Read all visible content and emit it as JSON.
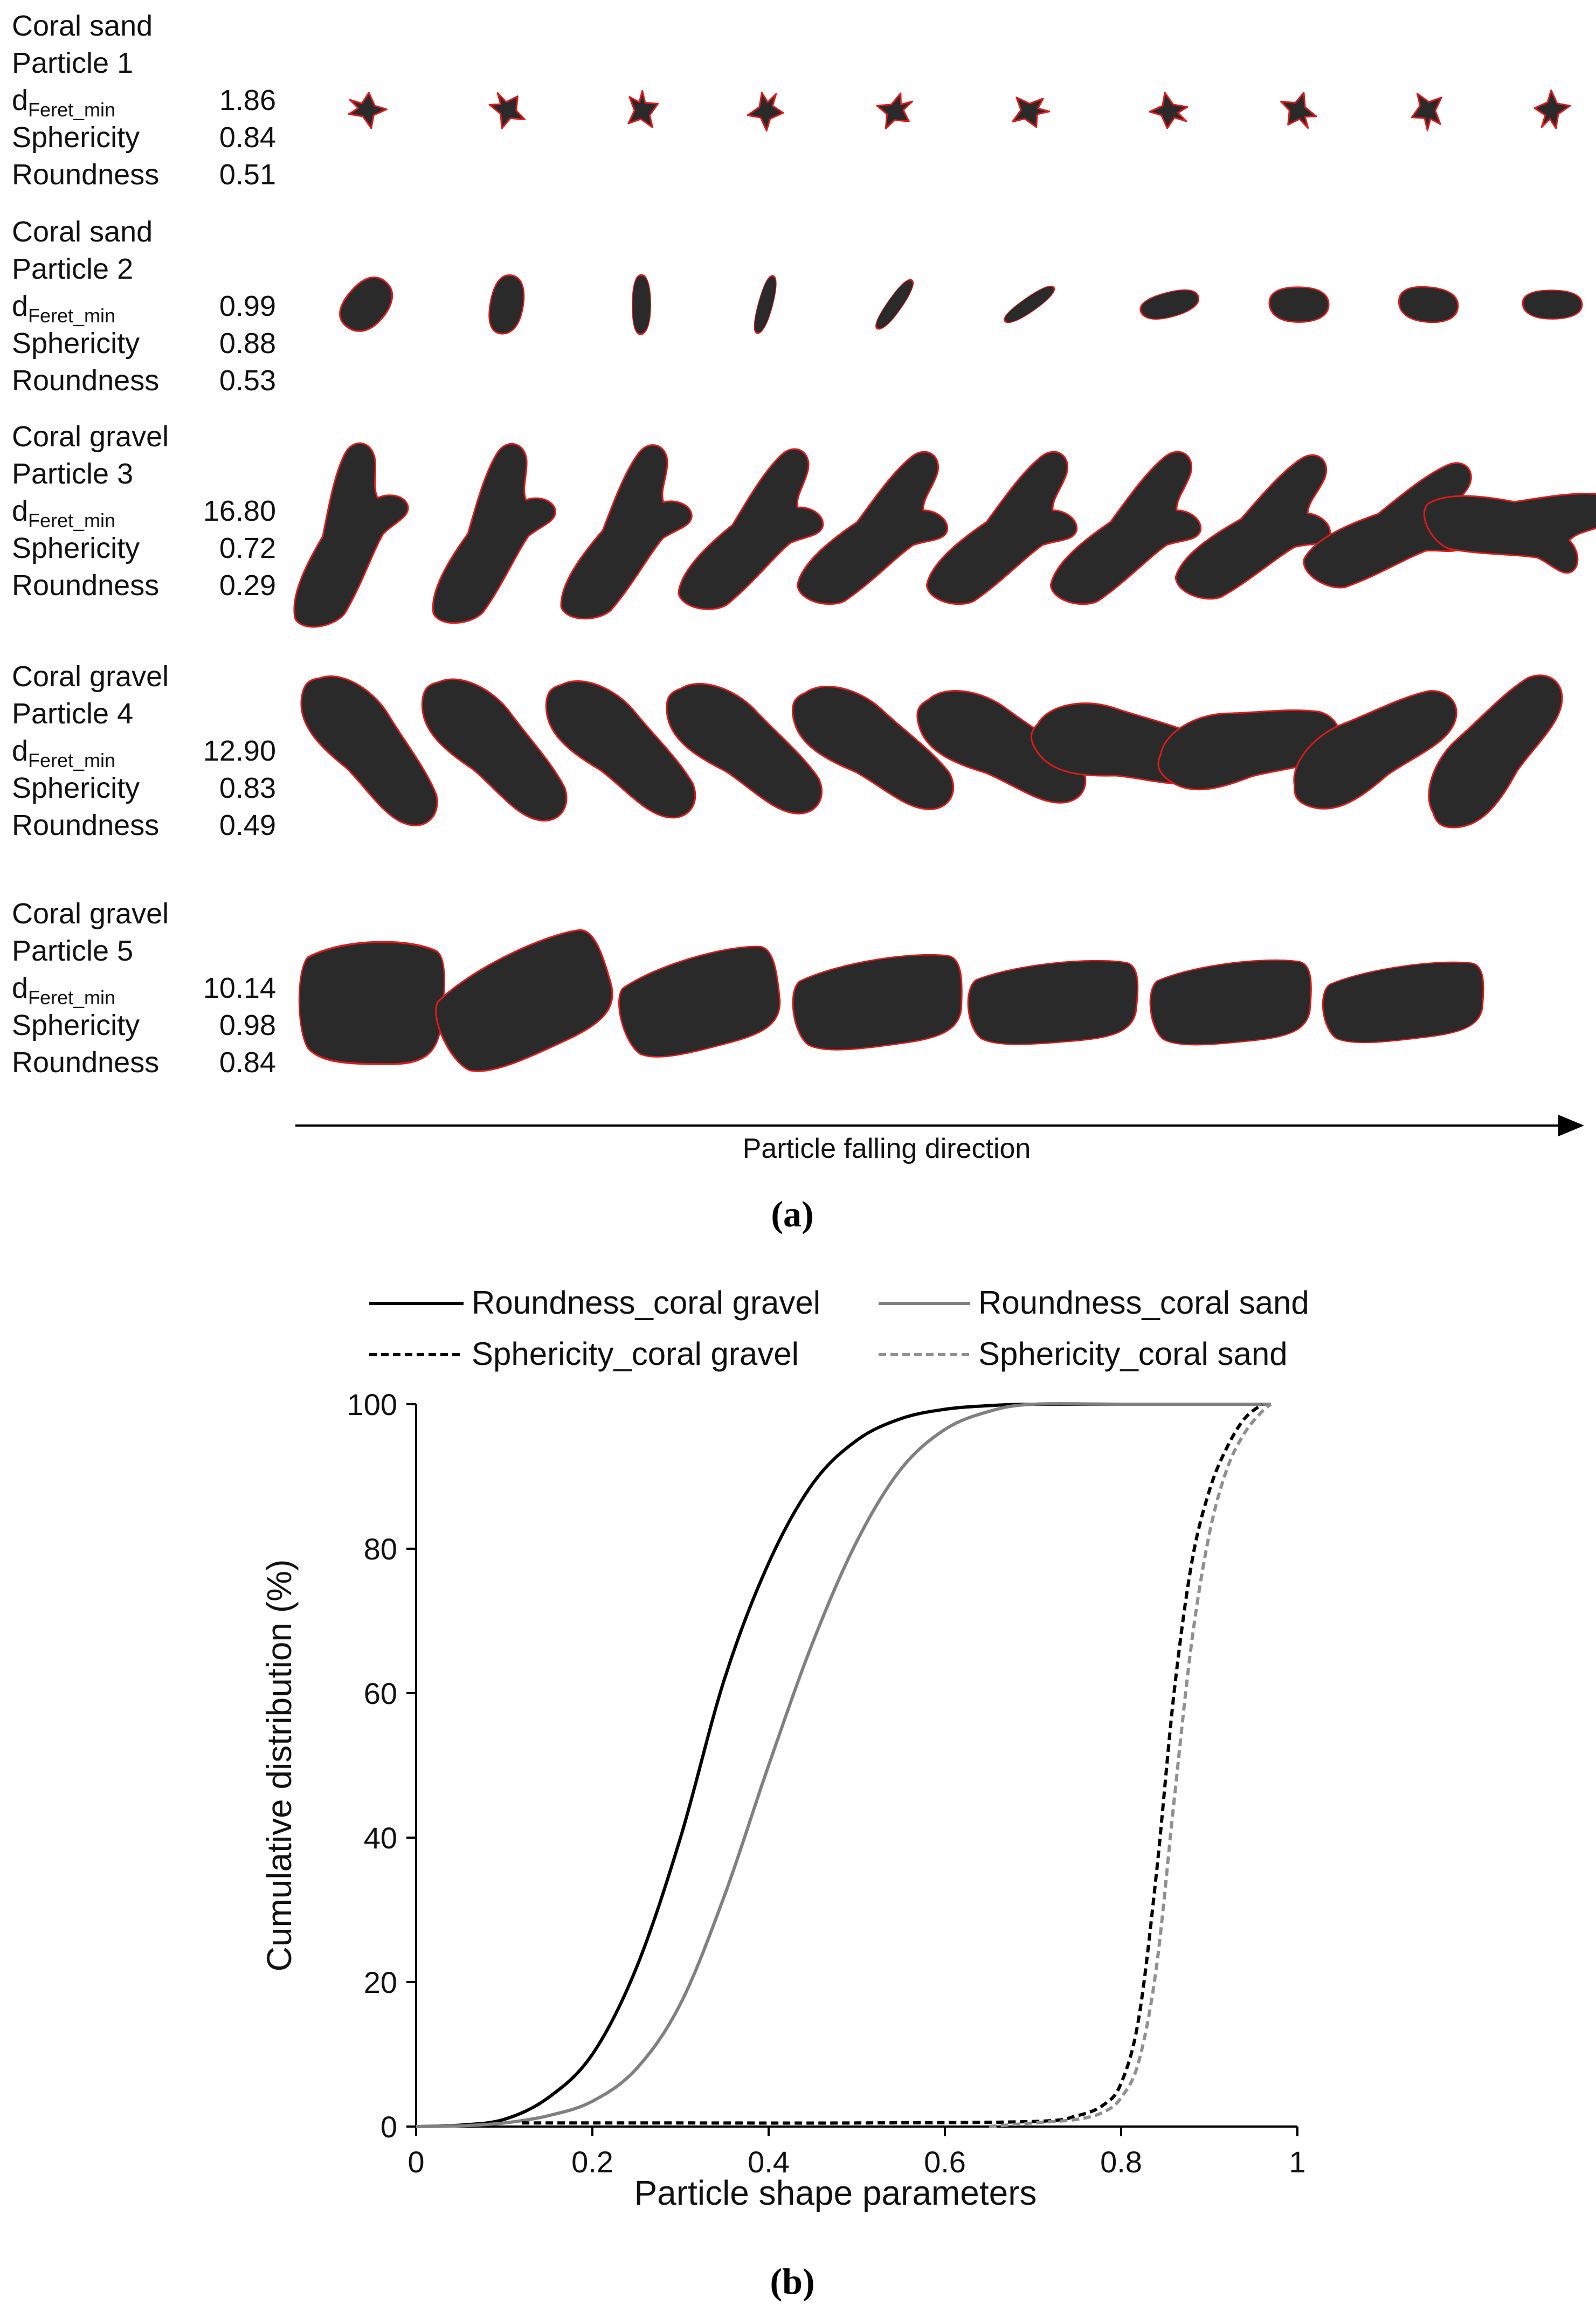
{
  "panel_a": {
    "particles": [
      {
        "line1": "Coral sand",
        "line2": "Particle 1",
        "d_label": "d",
        "d_sub": "Feret_min",
        "d_value": "1.86",
        "sph_label": "Sphericity",
        "sph_value": "0.84",
        "rnd_label": "Roundness",
        "rnd_value": "0.51",
        "frames": 10
      },
      {
        "line1": "Coral sand",
        "line2": "Particle 2",
        "d_label": "d",
        "d_sub": "Feret_min",
        "d_value": "0.99",
        "sph_label": "Sphericity",
        "sph_value": "0.88",
        "rnd_label": "Roundness",
        "rnd_value": "0.53",
        "frames": 10
      },
      {
        "line1": "Coral gravel",
        "line2": "Particle 3",
        "d_label": "d",
        "d_sub": "Feret_min",
        "d_value": "16.80",
        "sph_label": "Sphericity",
        "sph_value": "0.72",
        "rnd_label": "Roundness",
        "rnd_value": "0.29",
        "frames": 10
      },
      {
        "line1": "Coral gravel",
        "line2": "Particle 4",
        "d_label": "d",
        "d_sub": "Feret_min",
        "d_value": "12.90",
        "sph_label": "Sphericity",
        "sph_value": "0.83",
        "rnd_label": "Roundness",
        "rnd_value": "0.49",
        "frames": 10
      },
      {
        "line1": "Coral gravel",
        "line2": "Particle 5",
        "d_label": "d",
        "d_sub": "Feret_min",
        "d_value": "10.14",
        "sph_label": "Sphericity",
        "sph_value": "0.98",
        "rnd_label": "Roundness",
        "rnd_value": "0.84",
        "frames": 7
      }
    ],
    "arrow_label": "Particle falling direction",
    "caption": "(a)",
    "colors": {
      "particle_fill": "#2a2a2a",
      "particle_outline": "#e01a1a"
    }
  },
  "panel_b": {
    "caption": "(b)",
    "chart_data": {
      "type": "line",
      "xlabel": "Particle shape parameters",
      "ylabel": "Cumulative  distribution (%)",
      "xlim": [
        0,
        1
      ],
      "ylim": [
        0,
        100
      ],
      "xticks": [
        0,
        0.2,
        0.4,
        0.6,
        0.8,
        1
      ],
      "xtick_labels": [
        "0",
        "0.2",
        "0.4",
        "0.6",
        "0.8",
        "1"
      ],
      "yticks": [
        0,
        20,
        40,
        60,
        80,
        100
      ],
      "ytick_labels": [
        "0",
        "20",
        "40",
        "60",
        "80",
        "100"
      ],
      "grid": false,
      "legend_position": "top",
      "series": [
        {
          "name": "Roundness_coral gravel",
          "color": "#000000",
          "dash": "solid",
          "x": [
            0,
            0.05,
            0.1,
            0.15,
            0.2,
            0.25,
            0.3,
            0.35,
            0.4,
            0.45,
            0.5,
            0.55,
            0.6,
            0.65,
            0.7,
            0.8,
            0.9,
            0.97
          ],
          "y": [
            0,
            0.2,
            1,
            4,
            10,
            22,
            40,
            62,
            78,
            89,
            95,
            98,
            99.3,
            99.8,
            100,
            100,
            100,
            100
          ]
        },
        {
          "name": "Roundness_coral sand",
          "color": "#808080",
          "dash": "solid",
          "x": [
            0,
            0.05,
            0.1,
            0.15,
            0.2,
            0.25,
            0.3,
            0.35,
            0.4,
            0.45,
            0.5,
            0.55,
            0.6,
            0.65,
            0.7,
            0.8,
            0.9,
            0.97
          ],
          "y": [
            0,
            0.1,
            0.5,
            1.5,
            3.5,
            8,
            17,
            32,
            50,
            67,
            81,
            91,
            96.5,
            99,
            100,
            100,
            100,
            100
          ]
        },
        {
          "name": "Sphericity_coral gravel",
          "color": "#000000",
          "dash": "dashed",
          "x": [
            0.12,
            0.3,
            0.5,
            0.7,
            0.75,
            0.78,
            0.8,
            0.82,
            0.84,
            0.86,
            0.88,
            0.9,
            0.92,
            0.94,
            0.96
          ],
          "y": [
            0.5,
            0.5,
            0.5,
            0.7,
            1.5,
            3,
            6,
            15,
            35,
            60,
            78,
            88,
            94,
            98,
            100
          ]
        },
        {
          "name": "Sphericity_coral sand",
          "color": "#909090",
          "dash": "dashed",
          "x": [
            0.65,
            0.7,
            0.75,
            0.78,
            0.8,
            0.82,
            0.84,
            0.86,
            0.88,
            0.9,
            0.92,
            0.94,
            0.96,
            0.97
          ],
          "y": [
            0,
            0.5,
            1,
            2,
            4,
            9,
            22,
            45,
            67,
            82,
            91,
            96,
            99,
            100
          ]
        }
      ]
    }
  }
}
